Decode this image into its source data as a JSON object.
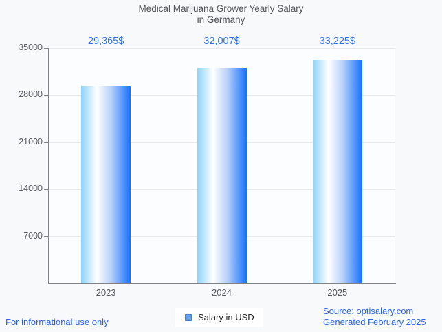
{
  "title": {
    "line1": "Medical Marijuana Grower Yearly Salary",
    "line2": "in Germany"
  },
  "chart_data": {
    "type": "bar",
    "title": "Medical Marijuana Grower Yearly Salary in Germany",
    "categories": [
      "2023",
      "2024",
      "2025"
    ],
    "values": [
      29365,
      32007,
      33225
    ],
    "annotations": [
      "29,365$",
      "32,007$",
      "33,225$"
    ],
    "series_name": "Salary in USD",
    "xlabel": "",
    "ylabel": "",
    "ylim": [
      0,
      35000
    ],
    "yticks": [
      7000,
      14000,
      21000,
      28000,
      35000
    ],
    "ytick_labels": [
      "7000",
      "14000",
      "21000",
      "28000",
      "35000"
    ],
    "grid": true,
    "legend_position": "bottom",
    "bar_gradient": [
      {
        "color": "#8ed3f9",
        "pos": 0
      },
      {
        "color": "#ffffff",
        "pos": 32
      },
      {
        "color": "#b9d2fa",
        "pos": 60
      },
      {
        "color": "#1570fb",
        "pos": 100
      }
    ],
    "annotation_color": "#2b70f2"
  },
  "legend": {
    "label": "Salary in USD",
    "swatch_fill": "#64a1e8",
    "swatch_border": "#4a84cc"
  },
  "footer": {
    "disclaimer": "For informational use only",
    "source": "Source: optisalary.com",
    "generated": "Generated February 2025",
    "link_color": "#2a63ee"
  },
  "colors": {
    "background": "#f8f9fb",
    "plot_background": "#fcfdfe",
    "gridline": "#e7e9ec",
    "axis": "#7f8387",
    "title_text": "#525457",
    "tick_text": "#55585c"
  }
}
